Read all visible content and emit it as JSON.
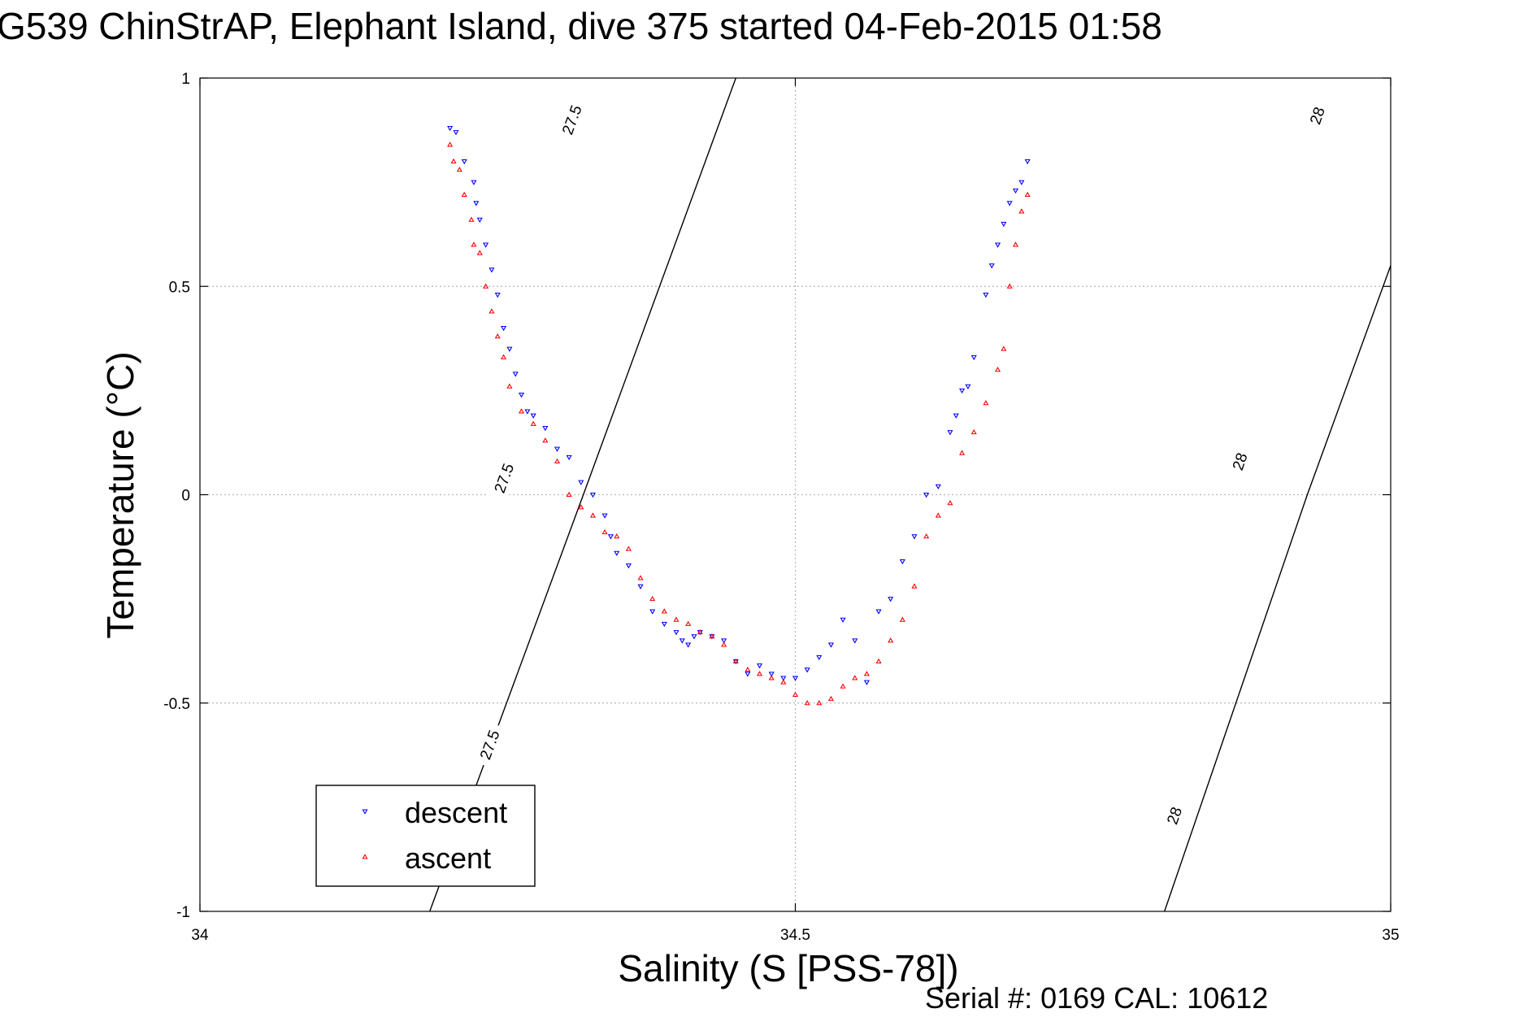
{
  "chart_data": {
    "type": "scatter",
    "title": "G539 ChinStrAP, Elephant Island, dive 375 started 04-Feb-2015 01:58",
    "xlabel": "Salinity (S [PSS-78])",
    "ylabel": "Temperature (°C)",
    "footer": "Serial #: 0169 CAL: 10612",
    "xlim": [
      34,
      35
    ],
    "ylim": [
      -1,
      1
    ],
    "x_ticks": [
      34,
      34.5,
      35
    ],
    "x_tick_labels": [
      "34",
      "34.5",
      "35"
    ],
    "y_ticks": [
      -1,
      -0.5,
      0,
      0.5,
      1
    ],
    "y_tick_labels": [
      "-1",
      "-0.5",
      "0",
      "0.5",
      "1"
    ],
    "grid": true,
    "legend_position": "bottom-left",
    "isopycnals": [
      {
        "label": "27.5",
        "points": [
          [
            34.193,
            -1.0
          ],
          [
            34.322,
            0.0
          ],
          [
            34.322,
            0.0
          ],
          [
            34.45,
            1.0
          ]
        ],
        "label_positions": [
          [
            34.243,
            -0.6
          ],
          [
            34.255,
            0.04
          ],
          [
            34.312,
            0.9
          ]
        ]
      },
      {
        "label": "28",
        "points": [
          [
            34.81,
            -1.0
          ],
          [
            34.93,
            0.0
          ],
          [
            35.0,
            0.55
          ]
        ],
        "label_positions": [
          [
            34.818,
            -0.77
          ],
          [
            34.873,
            0.08
          ],
          [
            34.938,
            0.91
          ]
        ]
      }
    ],
    "series": [
      {
        "name": "descent",
        "color": "#0000ff",
        "marker": "triangle-down",
        "x": [
          34.21,
          34.215,
          34.222,
          34.23,
          34.232,
          34.235,
          34.24,
          34.245,
          34.25,
          34.255,
          34.26,
          34.265,
          34.27,
          34.275,
          34.28,
          34.29,
          34.3,
          34.31,
          34.32,
          34.33,
          34.34,
          34.345,
          34.35,
          34.36,
          34.37,
          34.38,
          34.39,
          34.4,
          34.405,
          34.41,
          34.415,
          34.42,
          34.43,
          34.44,
          34.45,
          34.46,
          34.47,
          34.48,
          34.49,
          34.5,
          34.51,
          34.52,
          34.53,
          34.54,
          34.55,
          34.56,
          34.57,
          34.58,
          34.59,
          34.6,
          34.61,
          34.62,
          34.63,
          34.635,
          34.64,
          34.645,
          34.65,
          34.66,
          34.665,
          34.67,
          34.675,
          34.68,
          34.685,
          34.69,
          34.695
        ],
        "y": [
          0.88,
          0.87,
          0.8,
          0.75,
          0.7,
          0.66,
          0.6,
          0.54,
          0.48,
          0.4,
          0.35,
          0.29,
          0.24,
          0.2,
          0.19,
          0.16,
          0.11,
          0.09,
          0.03,
          0.0,
          -0.05,
          -0.1,
          -0.14,
          -0.17,
          -0.22,
          -0.28,
          -0.31,
          -0.33,
          -0.35,
          -0.36,
          -0.34,
          -0.33,
          -0.34,
          -0.35,
          -0.4,
          -0.43,
          -0.41,
          -0.43,
          -0.44,
          -0.44,
          -0.42,
          -0.39,
          -0.36,
          -0.3,
          -0.35,
          -0.45,
          -0.28,
          -0.25,
          -0.16,
          -0.1,
          0.0,
          0.02,
          0.15,
          0.19,
          0.25,
          0.26,
          0.33,
          0.48,
          0.55,
          0.6,
          0.65,
          0.7,
          0.73,
          0.75,
          0.8
        ]
      },
      {
        "name": "ascent",
        "color": "#ff0000",
        "marker": "triangle-up",
        "x": [
          34.21,
          34.213,
          34.218,
          34.222,
          34.228,
          34.23,
          34.235,
          34.24,
          34.245,
          34.25,
          34.255,
          34.26,
          34.27,
          34.28,
          34.29,
          34.3,
          34.31,
          34.32,
          34.33,
          34.34,
          34.35,
          34.36,
          34.37,
          34.38,
          34.39,
          34.4,
          34.41,
          34.42,
          34.43,
          34.44,
          34.45,
          34.46,
          34.47,
          34.48,
          34.49,
          34.5,
          34.51,
          34.52,
          34.53,
          34.54,
          34.55,
          34.56,
          34.57,
          34.58,
          34.59,
          34.6,
          34.61,
          34.62,
          34.63,
          34.64,
          34.65,
          34.66,
          34.67,
          34.675,
          34.68,
          34.685,
          34.69,
          34.695
        ],
        "y": [
          0.84,
          0.8,
          0.78,
          0.72,
          0.66,
          0.6,
          0.58,
          0.5,
          0.44,
          0.38,
          0.33,
          0.26,
          0.2,
          0.17,
          0.13,
          0.08,
          0.0,
          -0.03,
          -0.05,
          -0.09,
          -0.1,
          -0.13,
          -0.2,
          -0.25,
          -0.28,
          -0.3,
          -0.31,
          -0.33,
          -0.34,
          -0.36,
          -0.4,
          -0.42,
          -0.43,
          -0.44,
          -0.45,
          -0.48,
          -0.5,
          -0.5,
          -0.49,
          -0.46,
          -0.44,
          -0.43,
          -0.4,
          -0.35,
          -0.3,
          -0.22,
          -0.1,
          -0.05,
          -0.02,
          0.1,
          0.15,
          0.22,
          0.3,
          0.35,
          0.5,
          0.6,
          0.68,
          0.72
        ]
      }
    ]
  }
}
